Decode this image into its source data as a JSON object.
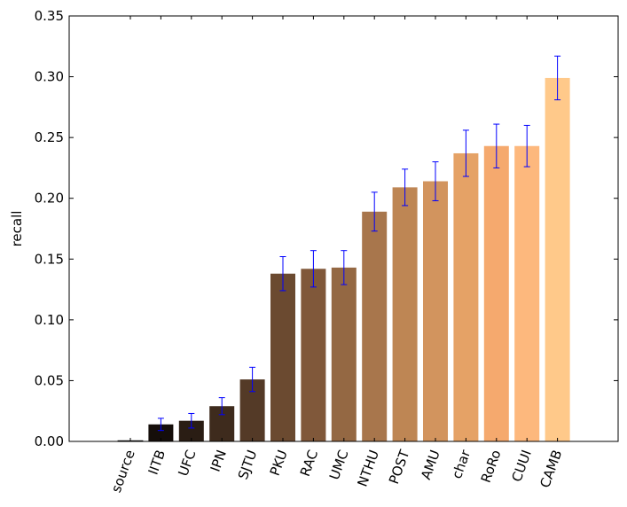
{
  "chart_data": {
    "type": "bar",
    "title": "",
    "xlabel": "",
    "ylabel": "recall",
    "ylim": [
      0,
      0.35
    ],
    "yticks": [
      "0.00",
      "0.05",
      "0.10",
      "0.15",
      "0.20",
      "0.25",
      "0.30",
      "0.35"
    ],
    "categories": [
      "source",
      "IITB",
      "UFC",
      "IPN",
      "SJTU",
      "PKU",
      "RAC",
      "UMC",
      "NTHU",
      "POST",
      "AMU",
      "char",
      "RoRo",
      "CUUI",
      "CAMB"
    ],
    "values": [
      0.0,
      0.014,
      0.017,
      0.029,
      0.051,
      0.138,
      0.142,
      0.143,
      0.189,
      0.209,
      0.214,
      0.237,
      0.243,
      0.243,
      0.299
    ],
    "errors": [
      0.0,
      0.005,
      0.006,
      0.007,
      0.01,
      0.014,
      0.015,
      0.014,
      0.016,
      0.015,
      0.016,
      0.019,
      0.018,
      0.017,
      0.018
    ],
    "bar_colors": [
      "#000000",
      "#150e0a",
      "#2a1d14",
      "#3e2b1d",
      "#543a27",
      "#6b4a30",
      "#80583a",
      "#946843",
      "#a8764c",
      "#be8654",
      "#d2945e",
      "#e5a266",
      "#f5a96e",
      "#fdb87d",
      "#ffc98a"
    ],
    "error_color": "#0000ff",
    "grid": false,
    "legend": "none",
    "x_tick_rotation": "70deg"
  }
}
